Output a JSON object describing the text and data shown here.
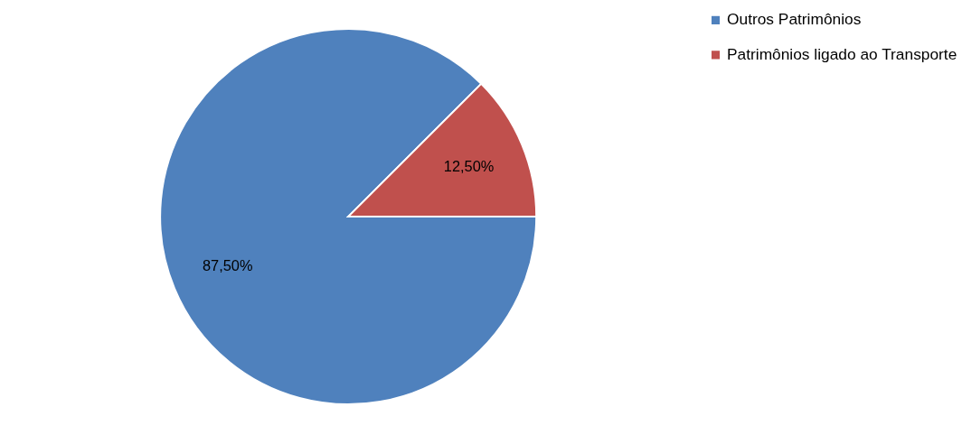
{
  "chart_data": {
    "type": "pie",
    "categories": [
      "Outros Patrimônios",
      "Patrimônios ligado ao Transporte"
    ],
    "values": [
      87.5,
      12.5
    ],
    "colors": [
      "#4f81bd",
      "#c0504d"
    ],
    "value_labels": [
      "87,50%",
      "12,50%"
    ],
    "legend": "right"
  }
}
